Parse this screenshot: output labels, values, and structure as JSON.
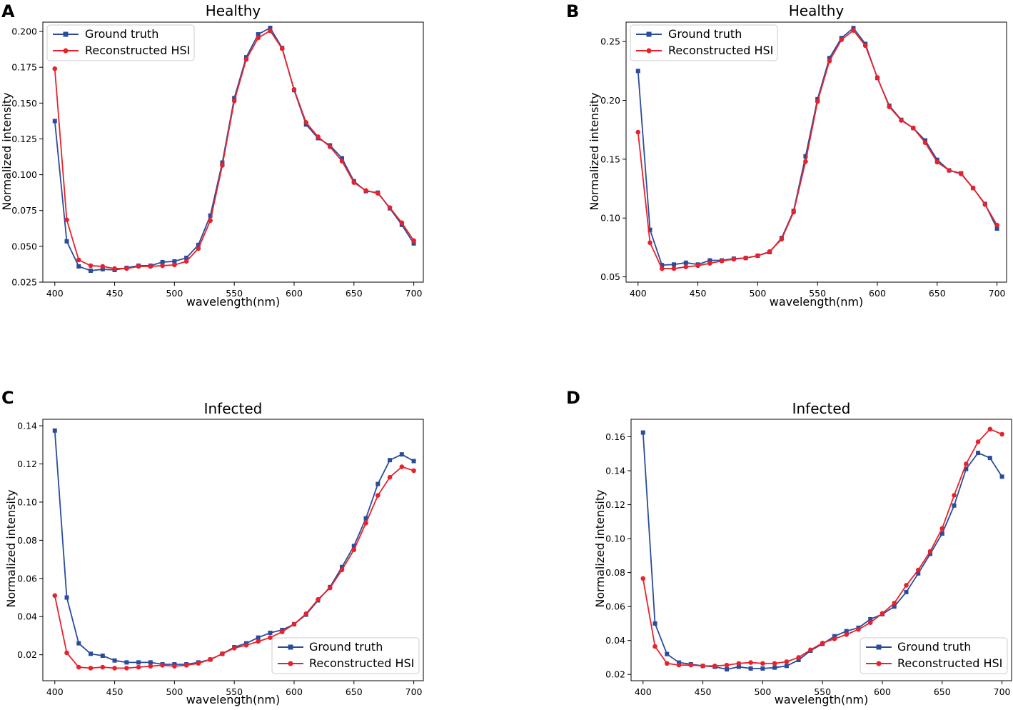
{
  "colors": {
    "ground_truth": "#2a4c9c",
    "reconstructed": "#e8222c",
    "axes": "#000000"
  },
  "chart_data": [
    {
      "panel": "A",
      "type": "line",
      "title": "Healthy",
      "xlabel": "wavelength(nm)",
      "ylabel": "Normalized intensity",
      "xlim": [
        390,
        708
      ],
      "ylim": [
        0.025,
        0.2065
      ],
      "xticks": [
        400,
        450,
        500,
        550,
        600,
        650,
        700
      ],
      "xtick_labels": [
        "400",
        "450",
        "500",
        "550",
        "600",
        "650",
        "700"
      ],
      "yticks": [
        0.025,
        0.05,
        0.075,
        0.1,
        0.125,
        0.15,
        0.175,
        0.2
      ],
      "ytick_labels": [
        "0.025",
        "0.050",
        "0.075",
        "0.100",
        "0.125",
        "0.150",
        "0.175",
        "0.200"
      ],
      "legend_position": "upper-left",
      "x": [
        400,
        410,
        420,
        430,
        440,
        450,
        460,
        470,
        480,
        490,
        500,
        510,
        520,
        530,
        540,
        550,
        560,
        570,
        580,
        590,
        600,
        610,
        620,
        630,
        640,
        650,
        660,
        670,
        680,
        690,
        700
      ],
      "series": [
        {
          "name": "Ground truth",
          "marker": "square",
          "values": [
            0.1375,
            0.0535,
            0.036,
            0.033,
            0.034,
            0.0335,
            0.035,
            0.0365,
            0.0365,
            0.039,
            0.0395,
            0.042,
            0.051,
            0.0715,
            0.1085,
            0.1535,
            0.182,
            0.198,
            0.2025,
            0.1885,
            0.159,
            0.135,
            0.1255,
            0.1205,
            0.1115,
            0.0955,
            0.0885,
            0.0875,
            0.0765,
            0.065,
            0.052
          ]
        },
        {
          "name": "Reconstructed HSI",
          "marker": "circle",
          "values": [
            0.174,
            0.0685,
            0.0405,
            0.0365,
            0.036,
            0.0345,
            0.0345,
            0.036,
            0.036,
            0.0365,
            0.037,
            0.0395,
            0.0485,
            0.068,
            0.1065,
            0.1515,
            0.1805,
            0.1955,
            0.2005,
            0.188,
            0.1595,
            0.1365,
            0.1265,
            0.1195,
            0.1095,
            0.0945,
            0.089,
            0.087,
            0.077,
            0.0665,
            0.054
          ]
        }
      ]
    },
    {
      "panel": "B",
      "type": "line",
      "title": "Healthy",
      "xlabel": "wavelength(nm)",
      "ylabel": "Normalized intensity",
      "xlim": [
        390,
        708
      ],
      "ylim": [
        0.0455,
        0.2665
      ],
      "xticks": [
        400,
        450,
        500,
        550,
        600,
        650,
        700
      ],
      "xtick_labels": [
        "400",
        "450",
        "500",
        "550",
        "600",
        "650",
        "700"
      ],
      "yticks": [
        0.05,
        0.1,
        0.15,
        0.2,
        0.25
      ],
      "ytick_labels": [
        "0.05",
        "0.10",
        "0.15",
        "0.20",
        "0.25"
      ],
      "legend_position": "upper-left",
      "x": [
        400,
        410,
        420,
        430,
        440,
        450,
        460,
        470,
        480,
        490,
        500,
        510,
        520,
        530,
        540,
        550,
        560,
        570,
        580,
        590,
        600,
        610,
        620,
        630,
        640,
        650,
        660,
        670,
        680,
        690,
        700
      ],
      "series": [
        {
          "name": "Ground truth",
          "marker": "square",
          "values": [
            0.225,
            0.09,
            0.06,
            0.0605,
            0.062,
            0.0605,
            0.064,
            0.064,
            0.0655,
            0.066,
            0.068,
            0.071,
            0.083,
            0.106,
            0.1525,
            0.201,
            0.236,
            0.253,
            0.2615,
            0.248,
            0.219,
            0.1955,
            0.1835,
            0.1765,
            0.166,
            0.1495,
            0.1405,
            0.138,
            0.1255,
            0.112,
            0.091
          ]
        },
        {
          "name": "Reconstructed HSI",
          "marker": "circle",
          "values": [
            0.173,
            0.079,
            0.057,
            0.057,
            0.0585,
            0.0595,
            0.0615,
            0.0635,
            0.065,
            0.066,
            0.068,
            0.0715,
            0.082,
            0.105,
            0.148,
            0.199,
            0.2335,
            0.2515,
            0.2595,
            0.2465,
            0.2195,
            0.1945,
            0.183,
            0.1765,
            0.164,
            0.1475,
            0.1405,
            0.1375,
            0.1255,
            0.1115,
            0.094
          ]
        }
      ]
    },
    {
      "panel": "C",
      "type": "line",
      "title": "Infected",
      "xlabel": "wavelength(nm)",
      "ylabel": "Normalized intensity",
      "xlim": [
        390,
        708
      ],
      "ylim": [
        0.0064,
        0.1434
      ],
      "xticks": [
        400,
        450,
        500,
        550,
        600,
        650,
        700
      ],
      "xtick_labels": [
        "400",
        "450",
        "500",
        "550",
        "600",
        "650",
        "700"
      ],
      "yticks": [
        0.02,
        0.04,
        0.06,
        0.08,
        0.1,
        0.12,
        0.14
      ],
      "ytick_labels": [
        "0.02",
        "0.04",
        "0.06",
        "0.08",
        "0.10",
        "0.12",
        "0.14"
      ],
      "legend_position": "lower-right",
      "x": [
        400,
        410,
        420,
        430,
        440,
        450,
        460,
        470,
        480,
        490,
        500,
        510,
        520,
        530,
        540,
        550,
        560,
        570,
        580,
        590,
        600,
        610,
        620,
        630,
        640,
        650,
        660,
        670,
        680,
        690,
        700
      ],
      "series": [
        {
          "name": "Ground truth",
          "marker": "square",
          "values": [
            0.1375,
            0.05,
            0.026,
            0.0205,
            0.0195,
            0.017,
            0.016,
            0.016,
            0.016,
            0.015,
            0.015,
            0.015,
            0.016,
            0.0175,
            0.0205,
            0.024,
            0.026,
            0.029,
            0.0315,
            0.033,
            0.036,
            0.041,
            0.0485,
            0.0555,
            0.066,
            0.077,
            0.0915,
            0.1095,
            0.122,
            0.125,
            0.1215
          ]
        },
        {
          "name": "Reconstructed HSI",
          "marker": "circle",
          "values": [
            0.051,
            0.021,
            0.0135,
            0.013,
            0.0135,
            0.013,
            0.013,
            0.0135,
            0.014,
            0.0145,
            0.014,
            0.0145,
            0.0155,
            0.0175,
            0.0205,
            0.0235,
            0.025,
            0.027,
            0.029,
            0.032,
            0.036,
            0.0415,
            0.049,
            0.055,
            0.0645,
            0.075,
            0.089,
            0.1035,
            0.113,
            0.1185,
            0.1165
          ]
        }
      ]
    },
    {
      "panel": "D",
      "type": "line",
      "title": "Infected",
      "xlabel": "wavelength(nm)",
      "ylabel": "Normalized intensity",
      "xlim": [
        390,
        708
      ],
      "ylim": [
        0.0163,
        0.1703
      ],
      "xticks": [
        400,
        450,
        500,
        550,
        600,
        650,
        700
      ],
      "xtick_labels": [
        "400",
        "450",
        "500",
        "550",
        "600",
        "650",
        "700"
      ],
      "yticks": [
        0.02,
        0.04,
        0.06,
        0.08,
        0.1,
        0.12,
        0.14,
        0.16
      ],
      "ytick_labels": [
        "0.02",
        "0.04",
        "0.06",
        "0.08",
        "0.10",
        "0.12",
        "0.14",
        "0.16"
      ],
      "legend_position": "lower-right",
      "x": [
        400,
        410,
        420,
        430,
        440,
        450,
        460,
        470,
        480,
        490,
        500,
        510,
        520,
        530,
        540,
        550,
        560,
        570,
        580,
        590,
        600,
        610,
        620,
        630,
        640,
        650,
        660,
        670,
        680,
        690,
        700
      ],
      "series": [
        {
          "name": "Ground truth",
          "marker": "square",
          "values": [
            0.1625,
            0.05,
            0.032,
            0.027,
            0.026,
            0.025,
            0.0245,
            0.023,
            0.0245,
            0.0235,
            0.0235,
            0.024,
            0.025,
            0.0285,
            0.034,
            0.038,
            0.0425,
            0.0455,
            0.0475,
            0.0525,
            0.0555,
            0.06,
            0.0685,
            0.0795,
            0.091,
            0.103,
            0.1195,
            0.141,
            0.1505,
            0.1475,
            0.1365
          ]
        },
        {
          "name": "Reconstructed HSI",
          "marker": "circle",
          "values": [
            0.0765,
            0.0365,
            0.0265,
            0.0255,
            0.0255,
            0.025,
            0.025,
            0.0255,
            0.0265,
            0.027,
            0.0265,
            0.0265,
            0.0275,
            0.03,
            0.0345,
            0.0385,
            0.041,
            0.0435,
            0.0465,
            0.0505,
            0.056,
            0.062,
            0.0725,
            0.0815,
            0.0925,
            0.106,
            0.1255,
            0.144,
            0.157,
            0.1645,
            0.1615
          ]
        }
      ]
    }
  ]
}
